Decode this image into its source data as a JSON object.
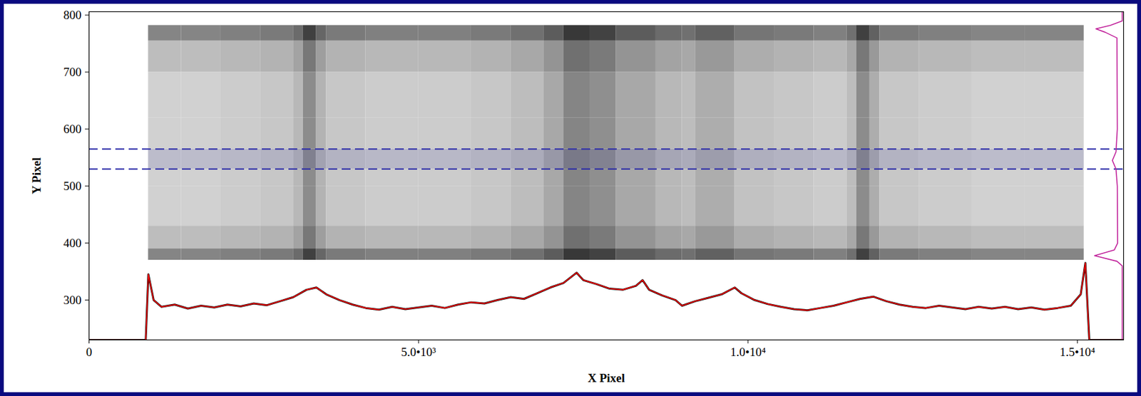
{
  "chart_data": {
    "type": "image",
    "x_label": "X Pixel",
    "y_label": "Y Pixel",
    "xlim": [
      0,
      15700
    ],
    "ylim": [
      230,
      806
    ],
    "xticks": [
      0,
      {
        "value": 5000,
        "label": "5.0•10³"
      },
      {
        "value": 10000,
        "label": "1.0•10⁴"
      },
      {
        "value": 15000,
        "label": "1.5•10⁴"
      }
    ],
    "yticks": [
      300,
      400,
      500,
      600,
      700,
      800
    ],
    "grid": false,
    "image": {
      "x_edges": [
        900,
        1400,
        2000,
        2600,
        3100,
        3250,
        3450,
        3600,
        4200,
        5000,
        5800,
        6400,
        6900,
        7200,
        7600,
        8000,
        8600,
        9000,
        9200,
        9800,
        10400,
        11000,
        11500,
        11650,
        11850,
        12000,
        12600,
        13400,
        14200,
        15100
      ],
      "y_edges": [
        370,
        390,
        430,
        500,
        530,
        565,
        620,
        700,
        755,
        782
      ],
      "zlim": [
        0,
        1
      ],
      "darkness": [
        [
          0.48,
          0.48,
          0.5,
          0.52,
          0.58,
          0.75,
          0.6,
          0.52,
          0.5,
          0.5,
          0.52,
          0.56,
          0.64,
          0.78,
          0.74,
          0.64,
          0.58,
          0.56,
          0.62,
          0.54,
          0.52,
          0.5,
          0.56,
          0.75,
          0.62,
          0.52,
          0.5,
          0.48,
          0.48
        ],
        [
          0.26,
          0.26,
          0.28,
          0.3,
          0.36,
          0.53,
          0.38,
          0.3,
          0.28,
          0.28,
          0.3,
          0.34,
          0.42,
          0.56,
          0.52,
          0.42,
          0.36,
          0.34,
          0.4,
          0.32,
          0.3,
          0.28,
          0.34,
          0.53,
          0.4,
          0.3,
          0.28,
          0.26,
          0.26
        ],
        [
          0.18,
          0.18,
          0.2,
          0.22,
          0.28,
          0.45,
          0.3,
          0.22,
          0.2,
          0.2,
          0.22,
          0.26,
          0.34,
          0.48,
          0.44,
          0.34,
          0.28,
          0.26,
          0.32,
          0.24,
          0.22,
          0.2,
          0.26,
          0.45,
          0.32,
          0.22,
          0.2,
          0.18,
          0.18
        ],
        [
          0.18,
          0.18,
          0.2,
          0.22,
          0.28,
          0.45,
          0.3,
          0.22,
          0.2,
          0.2,
          0.22,
          0.26,
          0.34,
          0.48,
          0.44,
          0.34,
          0.28,
          0.26,
          0.32,
          0.24,
          0.22,
          0.2,
          0.26,
          0.45,
          0.32,
          0.22,
          0.2,
          0.18,
          0.18
        ],
        [
          0.18,
          0.18,
          0.2,
          0.22,
          0.28,
          0.45,
          0.3,
          0.22,
          0.2,
          0.2,
          0.22,
          0.26,
          0.34,
          0.48,
          0.44,
          0.34,
          0.28,
          0.26,
          0.32,
          0.24,
          0.22,
          0.2,
          0.26,
          0.45,
          0.32,
          0.22,
          0.2,
          0.18,
          0.18
        ],
        [
          0.18,
          0.18,
          0.2,
          0.22,
          0.28,
          0.45,
          0.3,
          0.22,
          0.2,
          0.2,
          0.22,
          0.26,
          0.34,
          0.48,
          0.44,
          0.34,
          0.28,
          0.26,
          0.32,
          0.24,
          0.22,
          0.2,
          0.26,
          0.45,
          0.32,
          0.22,
          0.2,
          0.18,
          0.18
        ],
        [
          0.18,
          0.18,
          0.2,
          0.22,
          0.28,
          0.45,
          0.3,
          0.22,
          0.2,
          0.2,
          0.22,
          0.26,
          0.34,
          0.48,
          0.44,
          0.34,
          0.28,
          0.26,
          0.32,
          0.24,
          0.22,
          0.2,
          0.26,
          0.45,
          0.32,
          0.22,
          0.2,
          0.18,
          0.18
        ],
        [
          0.26,
          0.26,
          0.28,
          0.3,
          0.36,
          0.53,
          0.38,
          0.3,
          0.28,
          0.28,
          0.3,
          0.34,
          0.42,
          0.56,
          0.52,
          0.42,
          0.36,
          0.34,
          0.4,
          0.32,
          0.3,
          0.28,
          0.34,
          0.53,
          0.4,
          0.3,
          0.28,
          0.26,
          0.26
        ],
        [
          0.48,
          0.48,
          0.5,
          0.52,
          0.58,
          0.75,
          0.6,
          0.52,
          0.5,
          0.5,
          0.52,
          0.56,
          0.64,
          0.78,
          0.74,
          0.64,
          0.58,
          0.56,
          0.62,
          0.54,
          0.52,
          0.5,
          0.56,
          0.75,
          0.62,
          0.52,
          0.5,
          0.48,
          0.48
        ]
      ]
    },
    "extraction_region": {
      "values": [
        530,
        565
      ],
      "color": "#2a2aa8",
      "line_style": "dashed"
    },
    "x_profile": {
      "color": "#ff0000",
      "x": [
        0,
        860,
        900,
        980,
        1100,
        1300,
        1500,
        1700,
        1900,
        2100,
        2300,
        2500,
        2700,
        2900,
        3100,
        3300,
        3450,
        3600,
        3800,
        4000,
        4200,
        4400,
        4600,
        4800,
        5000,
        5200,
        5400,
        5600,
        5800,
        6000,
        6200,
        6400,
        6600,
        6800,
        7000,
        7200,
        7400,
        7500,
        7700,
        7900,
        8100,
        8300,
        8400,
        8500,
        8700,
        8900,
        9000,
        9200,
        9400,
        9600,
        9800,
        9900,
        10100,
        10300,
        10500,
        10700,
        10900,
        11100,
        11300,
        11500,
        11700,
        11900,
        12100,
        12300,
        12500,
        12700,
        12900,
        13100,
        13300,
        13500,
        13700,
        13900,
        14100,
        14300,
        14500,
        14700,
        14900,
        15050,
        15120,
        15180,
        15700
      ],
      "values": [
        230,
        230,
        345,
        300,
        288,
        292,
        285,
        290,
        287,
        292,
        289,
        294,
        291,
        298,
        305,
        318,
        322,
        310,
        300,
        292,
        286,
        283,
        288,
        284,
        287,
        290,
        286,
        292,
        296,
        294,
        300,
        305,
        302,
        312,
        322,
        330,
        348,
        335,
        328,
        320,
        318,
        325,
        335,
        318,
        308,
        300,
        290,
        298,
        304,
        310,
        322,
        312,
        300,
        293,
        288,
        284,
        282,
        286,
        290,
        296,
        302,
        306,
        298,
        292,
        288,
        286,
        290,
        287,
        284,
        288,
        285,
        288,
        284,
        287,
        283,
        286,
        290,
        310,
        365,
        230,
        230
      ]
    },
    "y_profile": {
      "color": "#c0209a",
      "x": [
        15680,
        15680,
        15600,
        15260,
        15560,
        15610,
        15605,
        15585,
        15530,
        15585,
        15605,
        15600,
        15420,
        15280,
        15500,
        15680,
        15680
      ],
      "y": [
        232,
        360,
        368,
        378,
        388,
        400,
        500,
        530,
        545,
        560,
        600,
        760,
        770,
        776,
        782,
        790,
        806
      ]
    }
  }
}
